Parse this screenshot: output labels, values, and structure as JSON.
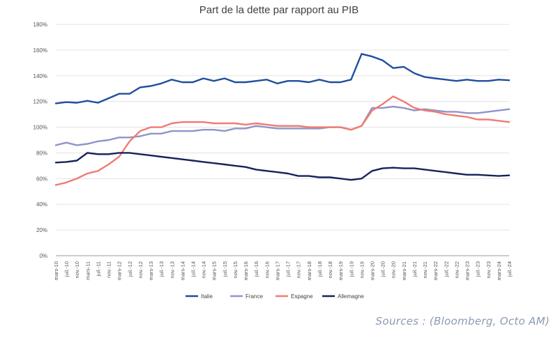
{
  "chart_data": {
    "type": "line",
    "title": "Part de la dette par rapport au PIB",
    "xlabel": "",
    "ylabel": "",
    "ylim": [
      0,
      180
    ],
    "y_ticks": [
      "0%",
      "20%",
      "40%",
      "60%",
      "80%",
      "100%",
      "120%",
      "140%",
      "160%",
      "180%"
    ],
    "grid": "horizontal",
    "legend_position": "bottom",
    "x": [
      "mars-10",
      "juil.-10",
      "nov.-10",
      "mars-11",
      "juil.-11",
      "nov.-11",
      "mars-12",
      "juil.-12",
      "nov.-12",
      "mars-13",
      "juil.-13",
      "nov.-13",
      "mars-14",
      "juil.-14",
      "nov.-14",
      "mars-15",
      "juil.-15",
      "nov.-15",
      "mars-16",
      "juil.-16",
      "nov.-16",
      "mars-17",
      "juil.-17",
      "nov.-17",
      "mars-18",
      "juil.-18",
      "nov.-18",
      "mars-19",
      "juil.-19",
      "nov.-19",
      "mars-20",
      "juil.-20",
      "nov.-20",
      "mars-21",
      "juil.-21",
      "nov.-21",
      "mars-22",
      "juil.-22",
      "nov.-22",
      "mars-23",
      "juil.-23",
      "nov.-23",
      "mars-24",
      "juil.-24"
    ],
    "series": [
      {
        "name": "Italie",
        "color": "#1f4e9e",
        "values": [
          118.5,
          119.5,
          119,
          120.5,
          119,
          122.5,
          126,
          126,
          131,
          132,
          134,
          137,
          135,
          135,
          138,
          136,
          138,
          135,
          135,
          136,
          137,
          134,
          136,
          136,
          135,
          137,
          135,
          135,
          137,
          157,
          155,
          152,
          146,
          147,
          142,
          139,
          138,
          137,
          136,
          137,
          136,
          136,
          137,
          136.5
        ]
      },
      {
        "name": "France",
        "color": "#8f95c9",
        "values": [
          86,
          88,
          86,
          87,
          89,
          90,
          92,
          92,
          93,
          95,
          95,
          97,
          97,
          97,
          98,
          98,
          97,
          99,
          99,
          101,
          100,
          99,
          99,
          99,
          99,
          99,
          100,
          100,
          98,
          101,
          115,
          115,
          116,
          115,
          113,
          114,
          113,
          112,
          112,
          111,
          111,
          112,
          113,
          114
        ]
      },
      {
        "name": "Espagne",
        "color": "#f07b74",
        "values": [
          55,
          57,
          60,
          64,
          66,
          71,
          77,
          89,
          97,
          100,
          100,
          103,
          104,
          104,
          104,
          103,
          103,
          103,
          102,
          103,
          102,
          101,
          101,
          101,
          100,
          100,
          100,
          100,
          98,
          101,
          113,
          118,
          124,
          120,
          115,
          113,
          112,
          110,
          109,
          108,
          106,
          106,
          105,
          104
        ]
      },
      {
        "name": "Allemagne",
        "color": "#16235a",
        "values": [
          72.5,
          73,
          74,
          80,
          79,
          79,
          80,
          80,
          79,
          78,
          77,
          76,
          75,
          74,
          73,
          72,
          71,
          70,
          69,
          67,
          66,
          65,
          64,
          62,
          62,
          61,
          61,
          60,
          59,
          60,
          66,
          68,
          68.5,
          68,
          68,
          67,
          66,
          65,
          64,
          63,
          63,
          62.5,
          62,
          62.5
        ]
      }
    ]
  },
  "source": "Sources : (Bloomberg, Octo AM)"
}
